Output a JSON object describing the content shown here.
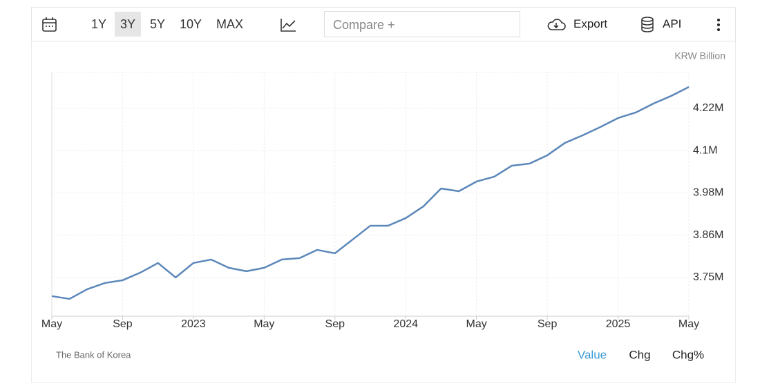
{
  "toolbar": {
    "ranges": [
      "1Y",
      "3Y",
      "5Y",
      "10Y",
      "MAX"
    ],
    "active_range": 1,
    "compare_placeholder": "Compare +",
    "export": "Export",
    "api": "API"
  },
  "chart_data": {
    "type": "line",
    "unit": "KRW Billion",
    "source": "The Bank of Korea",
    "views": [
      "Value",
      "Chg",
      "Chg%"
    ],
    "active_view": 0,
    "categories": [
      "May",
      null,
      null,
      null,
      "Sep",
      null,
      null,
      null,
      "2023",
      null,
      null,
      null,
      "May",
      null,
      null,
      null,
      "Sep",
      null,
      null,
      null,
      "2024",
      null,
      null,
      null,
      "May",
      null,
      null,
      null,
      "Sep",
      null,
      null,
      null,
      "2025",
      null,
      null,
      null,
      "May"
    ],
    "series": [
      {
        "name": "Value",
        "color": "#5b87b9",
        "values": [
          3692500,
          3684700,
          3711900,
          3729400,
          3737200,
          3758600,
          3785800,
          3745000,
          3785800,
          3795500,
          3772300,
          3762500,
          3772300,
          3795500,
          3799400,
          3822700,
          3813000,
          3851800,
          3890700,
          3890700,
          3912100,
          3945100,
          3995600,
          3987800,
          4015000,
          4028600,
          4059700,
          4065600,
          4088900,
          4123900,
          4145200,
          4168500,
          4193800,
          4209300,
          4234600,
          4256000,
          4281200
        ]
      }
    ],
    "ylim": [
      3636000,
      4322000
    ],
    "yticks": [
      {
        "value": 3745000,
        "label": "3.75M"
      },
      {
        "value": 3864000,
        "label": "3.86M"
      },
      {
        "value": 3983000,
        "label": "3.98M"
      },
      {
        "value": 4102000,
        "label": "4.1M"
      },
      {
        "value": 4221000,
        "label": "4.22M"
      }
    ],
    "grid": true
  }
}
